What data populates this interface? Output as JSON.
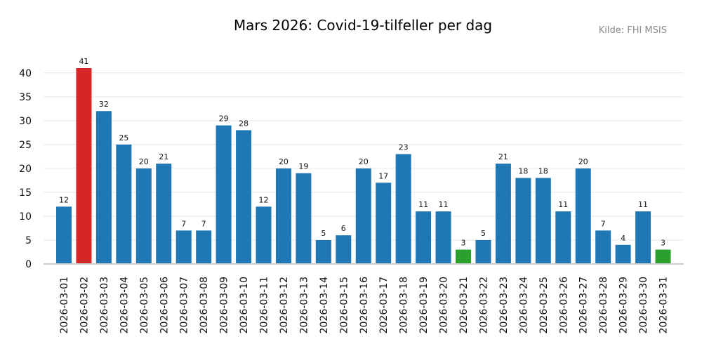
{
  "chart_data": {
    "type": "bar",
    "title": "Mars 2026: Covid-19-tilfeller per dag",
    "source": "Kilde: FHI MSIS",
    "xlabel": "",
    "ylabel": "",
    "ylim": [
      0,
      41
    ],
    "yticks": [
      0,
      5,
      10,
      15,
      20,
      25,
      30,
      35,
      40
    ],
    "grid": true,
    "categories": [
      "2026-03-01",
      "2026-03-02",
      "2026-03-03",
      "2026-03-04",
      "2026-03-05",
      "2026-03-06",
      "2026-03-07",
      "2026-03-08",
      "2026-03-09",
      "2026-03-10",
      "2026-03-11",
      "2026-03-12",
      "2026-03-13",
      "2026-03-14",
      "2026-03-15",
      "2026-03-16",
      "2026-03-17",
      "2026-03-18",
      "2026-03-19",
      "2026-03-20",
      "2026-03-21",
      "2026-03-22",
      "2026-03-23",
      "2026-03-24",
      "2026-03-25",
      "2026-03-26",
      "2026-03-27",
      "2026-03-28",
      "2026-03-29",
      "2026-03-30",
      "2026-03-31"
    ],
    "values": [
      12,
      41,
      32,
      25,
      20,
      21,
      7,
      7,
      29,
      28,
      12,
      20,
      19,
      5,
      6,
      20,
      17,
      23,
      11,
      11,
      3,
      5,
      21,
      18,
      18,
      11,
      20,
      7,
      4,
      11,
      3
    ],
    "colors": {
      "default": "#1f77b4",
      "max": "#d62728",
      "min": "#2ca02c"
    }
  }
}
